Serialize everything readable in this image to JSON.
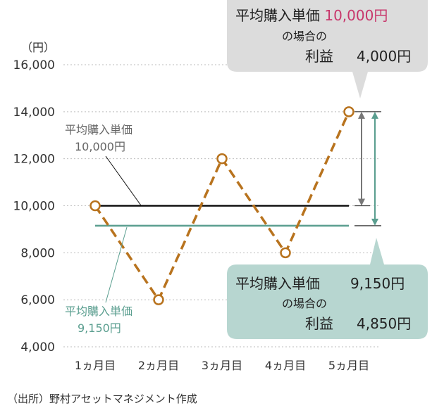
{
  "chart_data": {
    "type": "line",
    "unit_label": "（円）",
    "categories": [
      "1ヵ月目",
      "2ヵ月目",
      "3ヵ月目",
      "4ヵ月目",
      "5ヵ月目"
    ],
    "values": [
      10000,
      6000,
      12000,
      8000,
      14000
    ],
    "ylim": [
      4000,
      16000
    ],
    "yticks": [
      4000,
      6000,
      8000,
      10000,
      12000,
      14000,
      16000
    ],
    "ytick_labels": [
      "4,000",
      "6,000",
      "8,000",
      "10,000",
      "12,000",
      "14,000",
      "16,000"
    ],
    "grid": true,
    "series_color": "#b8731e",
    "reference_lines": [
      {
        "value": 10000,
        "color": "#111111",
        "label_line1": "平均購入単価",
        "label_line2": "10,000円"
      },
      {
        "value": 9150,
        "color": "#5a9e8f",
        "label_line1": "平均購入単価",
        "label_line2": "9,150円"
      }
    ],
    "callouts": [
      {
        "line1_prefix": "平均購入単価 ",
        "line1_value": "10,000円",
        "line2": "の場合の",
        "line3_label": "利益",
        "line3_value": "4,000円",
        "bg": "#dcdcdc",
        "value_color": "#c8366b"
      },
      {
        "line1_prefix": "平均購入単価",
        "line1_value": "9,150円",
        "line2": "の場合の",
        "line3_label": "利益",
        "line3_value": "4,850円",
        "bg": "#b7d6d0",
        "value_color": "#c8366b"
      }
    ],
    "source": "（出所）野村アセットマネジメント作成"
  }
}
